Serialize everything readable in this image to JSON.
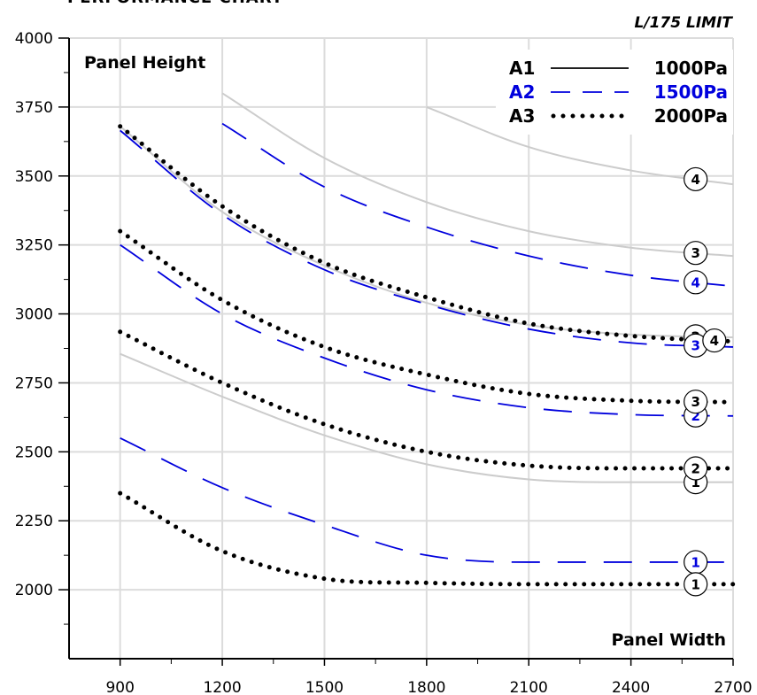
{
  "chart_data": {
    "type": "line",
    "title": "PERFORMANCE CHART",
    "subtitle": "L/175 LIMIT",
    "xlabel": "Panel Width",
    "ylabel": "Panel Height",
    "xlim": [
      750,
      2700
    ],
    "ylim": [
      1750,
      4000
    ],
    "x_ticks": [
      900,
      1200,
      1500,
      1800,
      2100,
      2400,
      2700
    ],
    "y_ticks": [
      2000,
      2250,
      2500,
      2750,
      3000,
      3250,
      3500,
      3750,
      4000
    ],
    "grid": true,
    "legend_position": "top-right",
    "legend": [
      {
        "code": "A1",
        "pressure": "1000Pa",
        "style": "solid",
        "color": "#000000",
        "curve_color": "#cccccc"
      },
      {
        "code": "A2",
        "pressure": "1500Pa",
        "style": "dashed",
        "color": "#0000dd",
        "curve_color": "#0000dd"
      },
      {
        "code": "A3",
        "pressure": "2000Pa",
        "style": "dotted",
        "color": "#000000",
        "curve_color": "#000000"
      }
    ],
    "series": [
      {
        "group": "A1",
        "curve": "1",
        "x": [
          900,
          1200,
          1500,
          1800,
          2100,
          2400,
          2700
        ],
        "y": [
          2855,
          2700,
          2560,
          2455,
          2400,
          2390,
          2390
        ]
      },
      {
        "group": "A1",
        "curve": "2",
        "x": [
          900,
          1200,
          1500,
          1800,
          2100,
          2400,
          2700
        ],
        "y": [
          3680,
          3370,
          3175,
          3040,
          2960,
          2925,
          2915
        ]
      },
      {
        "group": "A1",
        "curve": "3",
        "x": [
          1200,
          1500,
          1800,
          2100,
          2400,
          2700
        ],
        "y": [
          3800,
          3565,
          3405,
          3300,
          3240,
          3210
        ]
      },
      {
        "group": "A1",
        "curve": "4",
        "x": [
          1800,
          2100,
          2400,
          2700
        ],
        "y": [
          3750,
          3605,
          3520,
          3470
        ]
      },
      {
        "group": "A2",
        "curve": "1",
        "x": [
          900,
          1200,
          1500,
          1800,
          2100,
          2400,
          2700
        ],
        "y": [
          2550,
          2370,
          2235,
          2125,
          2100,
          2100,
          2100
        ]
      },
      {
        "group": "A2",
        "curve": "2",
        "x": [
          900,
          1200,
          1500,
          1800,
          2100,
          2400,
          2700
        ],
        "y": [
          3250,
          3000,
          2840,
          2725,
          2660,
          2635,
          2630
        ]
      },
      {
        "group": "A2",
        "curve": "3",
        "x": [
          900,
          1200,
          1500,
          1800,
          2100,
          2400,
          2700
        ],
        "y": [
          3665,
          3360,
          3160,
          3035,
          2945,
          2895,
          2880
        ]
      },
      {
        "group": "A2",
        "curve": "4",
        "x": [
          1200,
          1500,
          1800,
          2100,
          2400,
          2700
        ],
        "y": [
          3690,
          3460,
          3315,
          3210,
          3140,
          3100
        ]
      },
      {
        "group": "A3",
        "curve": "1",
        "x": [
          900,
          1200,
          1500,
          1800,
          2100,
          2400,
          2700
        ],
        "y": [
          2350,
          2140,
          2040,
          2025,
          2020,
          2020,
          2020
        ]
      },
      {
        "group": "A3",
        "curve": "2",
        "x": [
          900,
          1200,
          1500,
          1800,
          2100,
          2400,
          2700
        ],
        "y": [
          2935,
          2750,
          2600,
          2500,
          2450,
          2440,
          2440
        ]
      },
      {
        "group": "A3",
        "curve": "3",
        "x": [
          900,
          1200,
          1500,
          1800,
          2100,
          2400,
          2700
        ],
        "y": [
          3300,
          3050,
          2880,
          2780,
          2710,
          2685,
          2680
        ]
      },
      {
        "group": "A3",
        "curve": "4",
        "x": [
          900,
          1200,
          1500,
          1800,
          2100,
          2400,
          2700
        ],
        "y": [
          3680,
          3390,
          3185,
          3060,
          2965,
          2920,
          2900
        ]
      }
    ]
  }
}
